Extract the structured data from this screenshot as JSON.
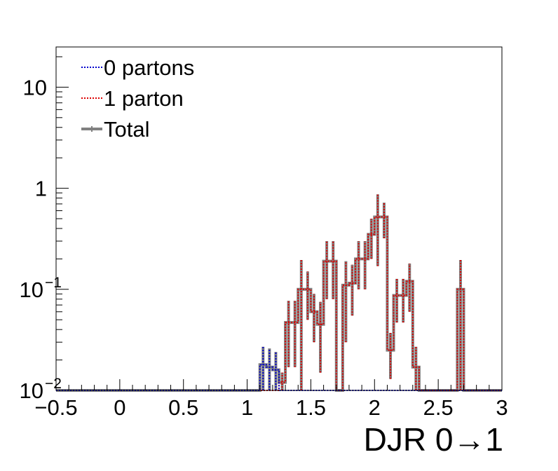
{
  "chart_data": {
    "type": "histogram",
    "xlabel": "DJR 0→1",
    "ylabel": "",
    "title": "",
    "xlim": [
      -0.5,
      3.0
    ],
    "ylim": [
      0.01,
      25
    ],
    "y_scale": "log",
    "grid": false,
    "legend_position": "top-left",
    "x_ticks": [
      {
        "value": -0.5,
        "label": "−0.5"
      },
      {
        "value": 0,
        "label": "0"
      },
      {
        "value": 0.5,
        "label": "0.5"
      },
      {
        "value": 1,
        "label": "1"
      },
      {
        "value": 1.5,
        "label": "1.5"
      },
      {
        "value": 2,
        "label": "2"
      },
      {
        "value": 2.5,
        "label": "2.5"
      },
      {
        "value": 3,
        "label": "3"
      }
    ],
    "y_ticks": [
      {
        "value": 0.01,
        "base": "10",
        "exp": "−2"
      },
      {
        "value": 0.1,
        "base": "10",
        "exp": "−1"
      },
      {
        "value": 1,
        "base": "1",
        "exp": ""
      },
      {
        "value": 10,
        "base": "10",
        "exp": ""
      }
    ],
    "bin_width": 0.05,
    "series": [
      {
        "name": "0 partons",
        "color": "#0000cc",
        "style": "dotted",
        "bins": [
          {
            "x": 1.1,
            "y": 0.018,
            "err": 0.009
          },
          {
            "x": 1.15,
            "y": 0.017,
            "err": 0.009
          },
          {
            "x": 1.2,
            "y": 0.016,
            "err": 0.008
          }
        ]
      },
      {
        "name": "1 parton",
        "color": "#dd0000",
        "style": "dotted",
        "bins": [
          {
            "x": 1.25,
            "y": 0.012,
            "err": 0.003
          },
          {
            "x": 1.3,
            "y": 0.047,
            "err": 0.03
          },
          {
            "x": 1.35,
            "y": 0.047,
            "err": 0.03
          },
          {
            "x": 1.4,
            "y": 0.1,
            "err": 0.095
          },
          {
            "x": 1.45,
            "y": 0.1,
            "err": 0.05
          },
          {
            "x": 1.5,
            "y": 0.06,
            "err": 0.03
          },
          {
            "x": 1.55,
            "y": 0.045,
            "err": 0.03
          },
          {
            "x": 1.6,
            "y": 0.19,
            "err": 0.11
          },
          {
            "x": 1.65,
            "y": 0.19,
            "err": 0.11
          },
          {
            "x": 1.75,
            "y": 0.11,
            "err": 0.08
          },
          {
            "x": 1.8,
            "y": 0.115,
            "err": 0.06
          },
          {
            "x": 1.85,
            "y": 0.2,
            "err": 0.1
          },
          {
            "x": 1.9,
            "y": 0.2,
            "err": 0.1
          },
          {
            "x": 1.95,
            "y": 0.35,
            "err": 0.15
          },
          {
            "x": 2.0,
            "y": 0.52,
            "err": 0.35
          },
          {
            "x": 2.05,
            "y": 0.52,
            "err": 0.2
          },
          {
            "x": 2.1,
            "y": 0.025,
            "err": 0.012
          },
          {
            "x": 2.15,
            "y": 0.087,
            "err": 0.04
          },
          {
            "x": 2.2,
            "y": 0.087,
            "err": 0.04
          },
          {
            "x": 2.25,
            "y": 0.12,
            "err": 0.06
          },
          {
            "x": 2.3,
            "y": 0.017,
            "err": 0.01
          },
          {
            "x": 2.65,
            "y": 0.1,
            "err": 0.095
          }
        ]
      },
      {
        "name": "Total",
        "color": "#808080",
        "style": "solid",
        "bins": [
          {
            "x": 1.1,
            "y": 0.018,
            "err": 0.009
          },
          {
            "x": 1.15,
            "y": 0.017,
            "err": 0.009
          },
          {
            "x": 1.2,
            "y": 0.016,
            "err": 0.008
          },
          {
            "x": 1.25,
            "y": 0.012,
            "err": 0.003
          },
          {
            "x": 1.3,
            "y": 0.047,
            "err": 0.03
          },
          {
            "x": 1.35,
            "y": 0.047,
            "err": 0.03
          },
          {
            "x": 1.4,
            "y": 0.1,
            "err": 0.095
          },
          {
            "x": 1.45,
            "y": 0.1,
            "err": 0.05
          },
          {
            "x": 1.5,
            "y": 0.06,
            "err": 0.03
          },
          {
            "x": 1.55,
            "y": 0.045,
            "err": 0.03
          },
          {
            "x": 1.6,
            "y": 0.19,
            "err": 0.11
          },
          {
            "x": 1.65,
            "y": 0.19,
            "err": 0.11
          },
          {
            "x": 1.75,
            "y": 0.11,
            "err": 0.08
          },
          {
            "x": 1.8,
            "y": 0.115,
            "err": 0.06
          },
          {
            "x": 1.85,
            "y": 0.2,
            "err": 0.1
          },
          {
            "x": 1.9,
            "y": 0.2,
            "err": 0.1
          },
          {
            "x": 1.95,
            "y": 0.35,
            "err": 0.15
          },
          {
            "x": 2.0,
            "y": 0.52,
            "err": 0.35
          },
          {
            "x": 2.05,
            "y": 0.52,
            "err": 0.2
          },
          {
            "x": 2.1,
            "y": 0.025,
            "err": 0.012
          },
          {
            "x": 2.15,
            "y": 0.087,
            "err": 0.04
          },
          {
            "x": 2.2,
            "y": 0.087,
            "err": 0.04
          },
          {
            "x": 2.25,
            "y": 0.12,
            "err": 0.06
          },
          {
            "x": 2.3,
            "y": 0.017,
            "err": 0.01
          },
          {
            "x": 2.65,
            "y": 0.1,
            "err": 0.095
          }
        ]
      }
    ]
  }
}
